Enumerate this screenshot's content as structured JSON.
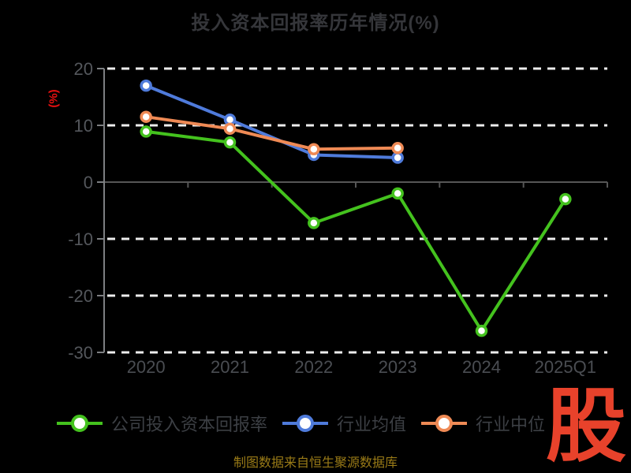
{
  "title": "投入资本回报率历年情况(%)",
  "y_axis_name": "(%)",
  "caption": "制图数据来自恒生聚源数据库",
  "watermark": "股",
  "colors": {
    "background": "#000000",
    "title_text": "#35363a",
    "grid_dash": "#ededed",
    "axis_line": "#7d7f82",
    "zero_line": "#565656",
    "y_tick_label": "#54575c",
    "x_tick_label": "#4a4d52",
    "legend_text": "#3c3f44",
    "axis_name_red": "#e81010",
    "caption_gold": "#9a7b17",
    "watermark_red": "#e8422b",
    "marker_fill": "#ffffff"
  },
  "chart_data": {
    "type": "line",
    "title": "投入资本回报率历年情况(%)",
    "ylabel": "(%)",
    "categories": [
      "2020",
      "2021",
      "2022",
      "2023",
      "2024",
      "2025Q1"
    ],
    "series": [
      {
        "name": "公司投入资本回报率",
        "color": "#44c21e",
        "values": [
          8.9,
          7.0,
          -7.2,
          -2.0,
          -26.2,
          -3.0
        ]
      },
      {
        "name": "行业均值",
        "color": "#4f7bdb",
        "values": [
          17.0,
          11.0,
          4.8,
          4.3,
          null,
          null
        ]
      },
      {
        "name": "行业中位",
        "color": "#ef8a55",
        "values": [
          11.5,
          9.4,
          5.8,
          6.0,
          null,
          null
        ]
      }
    ],
    "y_ticks": [
      20,
      10,
      0,
      -10,
      -20,
      -30
    ],
    "ylim": [
      -30,
      20
    ],
    "grid": "horizontal-dashed",
    "zero_axis": true,
    "legend_position": "bottom",
    "marker": "circle-white-fill"
  }
}
